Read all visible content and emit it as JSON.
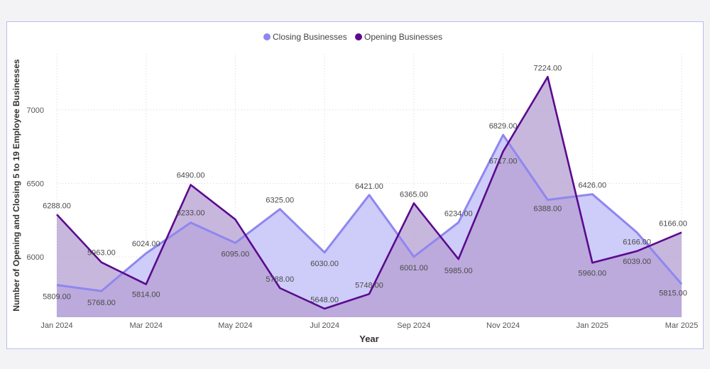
{
  "chart_data": {
    "type": "area",
    "title": "",
    "xlabel": "Year",
    "ylabel": "Number of Opening and Closing 5 to 19 Employee Businesses",
    "x": [
      "Jan 2024",
      "Feb 2024",
      "Mar 2024",
      "Apr 2024",
      "May 2024",
      "Jun 2024",
      "Jul 2024",
      "Aug 2024",
      "Sep 2024",
      "Oct 2024",
      "Nov 2024",
      "Dec 2024",
      "Jan 2025",
      "Feb 2025",
      "Mar 2025"
    ],
    "x_tick_labels": [
      "Jan 2024",
      "Mar 2024",
      "May 2024",
      "Jul 2024",
      "Sep 2024",
      "Nov 2024",
      "Jan 2025",
      "Mar 2025"
    ],
    "y_ticks": [
      6000,
      6500,
      7000
    ],
    "ylim": [
      5590,
      7380
    ],
    "grid": true,
    "legend_position": "top-center",
    "series": [
      {
        "name": "Closing Businesses",
        "color": "#8f86f0",
        "fill": "#c9c6f7",
        "values": [
          5809,
          5768,
          6024,
          6233,
          6095,
          6325,
          6030,
          6421,
          6001,
          6234,
          6829,
          6388,
          6426,
          6166,
          5815
        ]
      },
      {
        "name": "Opening Businesses",
        "color": "#5b0a8f",
        "fill": "#b49fd2",
        "values": [
          6288,
          5963,
          5814,
          6490,
          6255,
          5788,
          5648,
          5748,
          6365,
          5985,
          6717,
          7224,
          5960,
          6039,
          6166
        ]
      }
    ],
    "data_labels": {
      "Closing Businesses": [
        "5809.00",
        "5768.00",
        "6024.00",
        "6233.00",
        "6095.00",
        "6325.00",
        "6030.00",
        "6421.00",
        "6001.00",
        "6234.00",
        "6829.00",
        "6388.00",
        "6426.00",
        "6166.00",
        "5815.00"
      ],
      "Opening Businesses": [
        "6288.00",
        "5963.00",
        "5814.00",
        "6490.00",
        "",
        "5788.00",
        "5648.00",
        "5748.00",
        "6365.00",
        "5985.00",
        "6717.00",
        "7224.00",
        "5960.00",
        "6039.00",
        "6166.00"
      ]
    }
  }
}
